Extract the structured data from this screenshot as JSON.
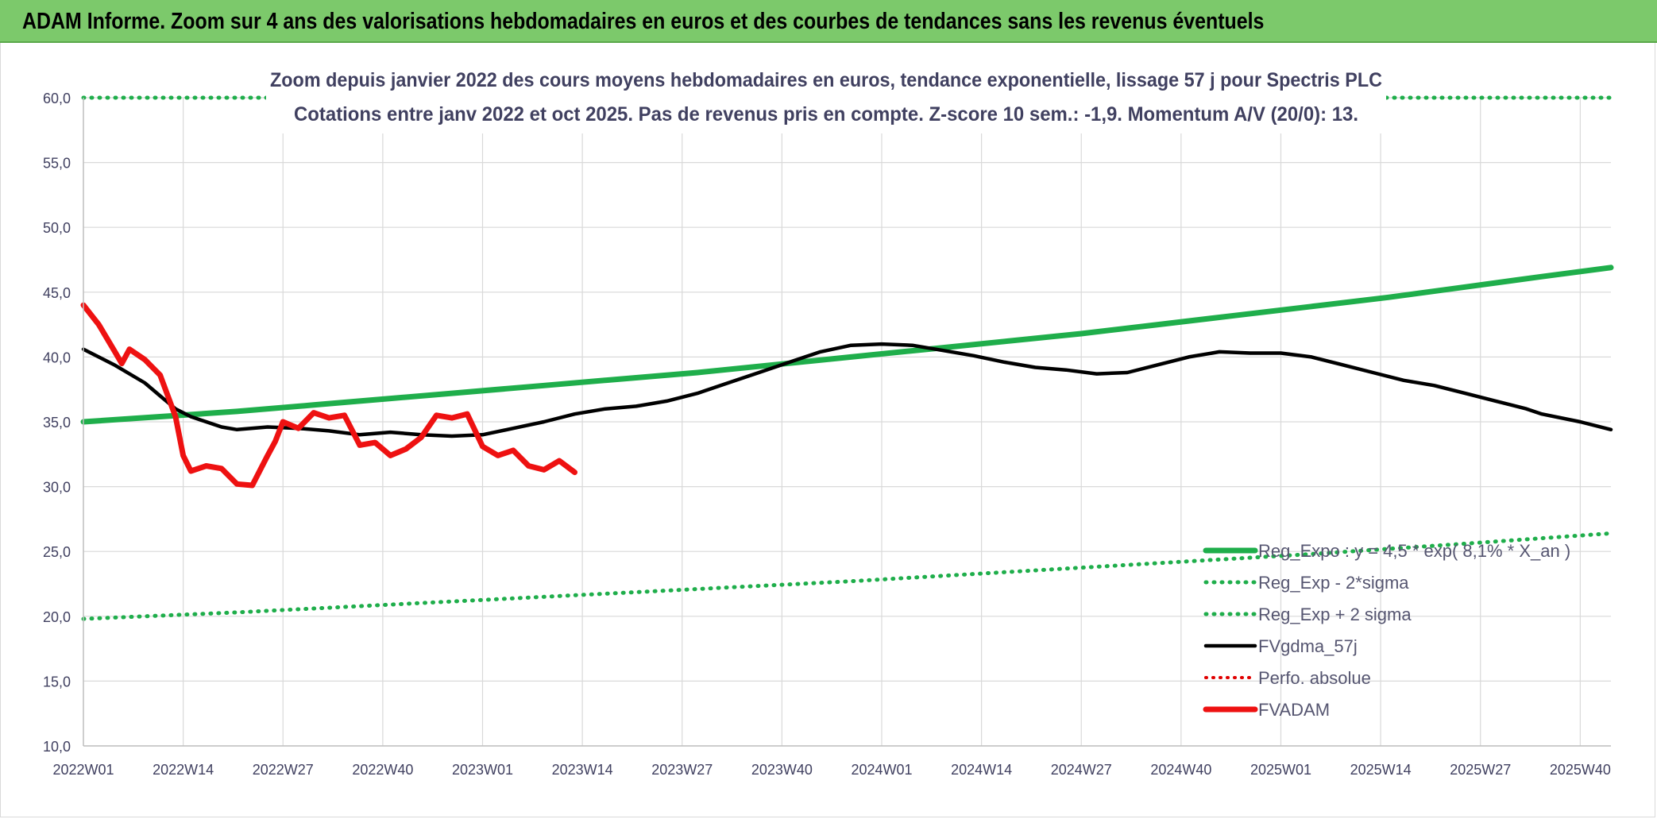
{
  "banner": {
    "title": "ADAM Informe. Zoom sur 4 ans des valorisations hebdomadaires en euros et des courbes de tendances sans les revenus éventuels"
  },
  "colors": {
    "banner_bg": "#7cc96b",
    "reg_expo": "#1fae4b",
    "sigma": "#1fae4b",
    "fvgdma": "#000000",
    "perfo": "#e00000",
    "fvadam": "#ee1111",
    "grid": "#d9d9d9",
    "text": "#404060"
  },
  "chart_data": {
    "type": "line",
    "title": "Zoom depuis janvier 2022 des cours moyens hebdomadaires en euros, tendance exponentielle, lissage 57 j pour Spectris PLC",
    "subtitle": "Cotations entre janv 2022 et oct 2025. Pas de revenus pris en compte. Z-score 10 sem.: -1,9. Momentum A/V (20/0): 13.",
    "xlabel": "",
    "ylabel": "",
    "ylim": [
      10,
      60
    ],
    "yticks": [
      "10,0",
      "15,0",
      "20,0",
      "25,0",
      "30,0",
      "35,0",
      "40,0",
      "45,0",
      "50,0",
      "55,0",
      "60,0"
    ],
    "xticks": [
      "2022W01",
      "2022W14",
      "2022W27",
      "2022W40",
      "2023W01",
      "2023W14",
      "2023W27",
      "2023W40",
      "2024W01",
      "2024W14",
      "2024W27",
      "2024W40",
      "2025W01",
      "2025W14",
      "2025W27",
      "2025W40"
    ],
    "x_range": [
      0,
      199
    ],
    "grid": true,
    "legend_position": "bottom-right",
    "series": [
      {
        "name": "Reg_Expo : y = 4,5 * exp( 8,1% * X_an )",
        "style": "solid-thick",
        "points": [
          [
            0,
            35.0
          ],
          [
            10,
            35.4
          ],
          [
            20,
            35.8
          ],
          [
            30,
            36.3
          ],
          [
            40,
            36.8
          ],
          [
            50,
            37.3
          ],
          [
            60,
            37.8
          ],
          [
            70,
            38.3
          ],
          [
            80,
            38.8
          ],
          [
            90,
            39.4
          ],
          [
            100,
            40.0
          ],
          [
            110,
            40.6
          ],
          [
            120,
            41.2
          ],
          [
            130,
            41.8
          ],
          [
            140,
            42.5
          ],
          [
            150,
            43.2
          ],
          [
            160,
            43.9
          ],
          [
            170,
            44.6
          ],
          [
            180,
            45.4
          ],
          [
            190,
            46.2
          ],
          [
            199,
            46.9
          ]
        ]
      },
      {
        "name": "Reg_Exp - 2*sigma",
        "style": "dotted",
        "points": [
          [
            0,
            19.8
          ],
          [
            20,
            20.3
          ],
          [
            40,
            20.9
          ],
          [
            60,
            21.5
          ],
          [
            80,
            22.1
          ],
          [
            100,
            22.7
          ],
          [
            120,
            23.4
          ],
          [
            140,
            24.1
          ],
          [
            160,
            24.8
          ],
          [
            180,
            25.6
          ],
          [
            199,
            26.4
          ]
        ]
      },
      {
        "name": "Reg_Exp + 2 sigma",
        "style": "dotted",
        "points": [
          [
            0,
            60.0
          ],
          [
            199,
            60.0
          ]
        ]
      },
      {
        "name": "FVgdma_57j",
        "style": "solid",
        "points": [
          [
            0,
            40.6
          ],
          [
            4,
            39.4
          ],
          [
            8,
            38.0
          ],
          [
            10,
            37.0
          ],
          [
            12,
            36.0
          ],
          [
            14,
            35.4
          ],
          [
            16,
            35.0
          ],
          [
            18,
            34.6
          ],
          [
            20,
            34.4
          ],
          [
            24,
            34.6
          ],
          [
            28,
            34.5
          ],
          [
            32,
            34.3
          ],
          [
            36,
            34.0
          ],
          [
            40,
            34.2
          ],
          [
            44,
            34.0
          ],
          [
            48,
            33.9
          ],
          [
            52,
            34.0
          ],
          [
            56,
            34.5
          ],
          [
            60,
            35.0
          ],
          [
            64,
            35.6
          ],
          [
            68,
            36.0
          ],
          [
            72,
            36.2
          ],
          [
            76,
            36.6
          ],
          [
            80,
            37.2
          ],
          [
            84,
            38.0
          ],
          [
            88,
            38.8
          ],
          [
            92,
            39.6
          ],
          [
            96,
            40.4
          ],
          [
            100,
            40.9
          ],
          [
            104,
            41.0
          ],
          [
            108,
            40.9
          ],
          [
            112,
            40.5
          ],
          [
            116,
            40.1
          ],
          [
            120,
            39.6
          ],
          [
            124,
            39.2
          ],
          [
            128,
            39.0
          ],
          [
            132,
            38.7
          ],
          [
            136,
            38.8
          ],
          [
            140,
            39.4
          ],
          [
            144,
            40.0
          ],
          [
            148,
            40.4
          ],
          [
            152,
            40.3
          ],
          [
            156,
            40.3
          ],
          [
            160,
            40.0
          ],
          [
            164,
            39.4
          ],
          [
            168,
            38.8
          ],
          [
            172,
            38.2
          ],
          [
            176,
            37.8
          ],
          [
            180,
            37.2
          ],
          [
            184,
            36.6
          ],
          [
            188,
            36.0
          ],
          [
            190,
            35.6
          ],
          [
            195,
            35.0
          ],
          [
            199,
            34.4
          ]
        ]
      },
      {
        "name": "Perfo. absolue",
        "style": "dotted",
        "points": []
      },
      {
        "name": "FVADAM",
        "style": "solid-thick",
        "points": [
          [
            0,
            44.0
          ],
          [
            2,
            42.5
          ],
          [
            4,
            40.5
          ],
          [
            5,
            39.5
          ],
          [
            6,
            40.6
          ],
          [
            8,
            39.8
          ],
          [
            10,
            38.6
          ],
          [
            12,
            35.4
          ],
          [
            13,
            32.4
          ],
          [
            14,
            31.2
          ],
          [
            16,
            31.6
          ],
          [
            18,
            31.4
          ],
          [
            20,
            30.2
          ],
          [
            22,
            30.1
          ],
          [
            24,
            32.4
          ],
          [
            25,
            33.5
          ],
          [
            26,
            35.0
          ],
          [
            28,
            34.5
          ],
          [
            30,
            35.7
          ],
          [
            32,
            35.3
          ],
          [
            34,
            35.5
          ],
          [
            36,
            33.2
          ],
          [
            38,
            33.4
          ],
          [
            40,
            32.4
          ],
          [
            42,
            32.9
          ],
          [
            44,
            33.8
          ],
          [
            46,
            35.5
          ],
          [
            48,
            35.3
          ],
          [
            50,
            35.6
          ],
          [
            52,
            33.1
          ],
          [
            54,
            32.4
          ],
          [
            56,
            32.8
          ],
          [
            58,
            31.6
          ],
          [
            60,
            31.3
          ],
          [
            62,
            32.0
          ],
          [
            64,
            31.1
          ]
        ]
      }
    ]
  },
  "legend": [
    {
      "key": "reg_expo",
      "label": "Reg_Expo : y = 4,5 * exp( 8,1% *  X_an )"
    },
    {
      "key": "minus2",
      "label": "Reg_Exp - 2*sigma"
    },
    {
      "key": "plus2",
      "label": "Reg_Exp + 2 sigma"
    },
    {
      "key": "fvgdma",
      "label": "FVgdma_57j"
    },
    {
      "key": "perfo",
      "label": "Perfo. absolue"
    },
    {
      "key": "fvadam",
      "label": "FVADAM"
    }
  ]
}
